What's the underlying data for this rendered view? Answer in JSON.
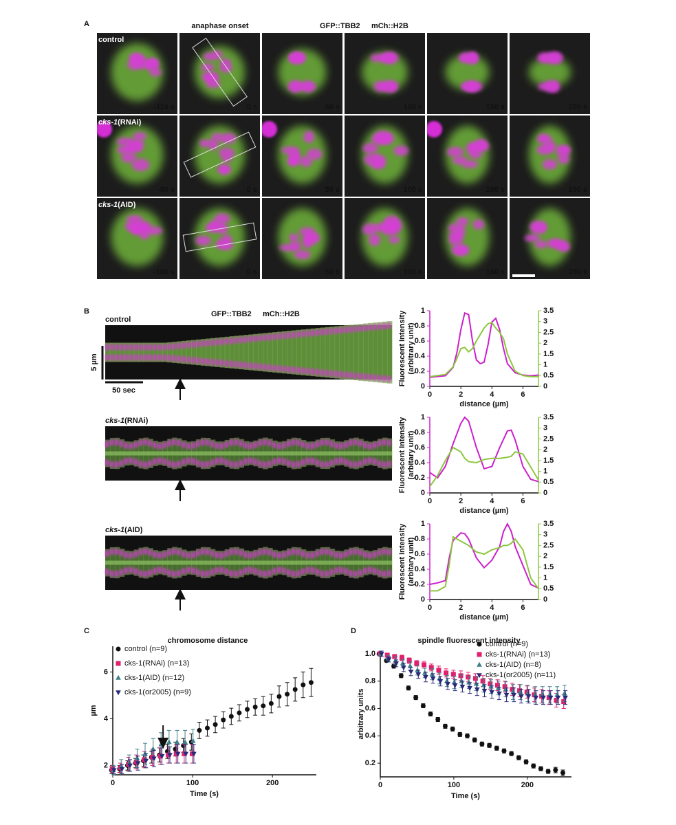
{
  "panel_a": {
    "label": "A",
    "header": "anaphase onset",
    "markers": [
      "GFP::TBB2",
      "mCh::H2B"
    ],
    "rows": [
      {
        "label": "control",
        "times": [
          "-110 s",
          "0 s",
          "50 s",
          "100 s",
          "150 s",
          "200 s"
        ]
      },
      {
        "gene": "cks-1",
        "condition": "(RNAi)",
        "times": [
          "-80 s",
          "0 s",
          "50 s",
          "100 s",
          "150 s",
          "200 s"
        ]
      },
      {
        "gene": "cks-1",
        "condition": "(AID)",
        "times": [
          "-180 s",
          "0 s",
          "50 s",
          "100 s",
          "150 s",
          "200 s"
        ]
      }
    ]
  },
  "panel_b": {
    "label": "B",
    "markers": [
      "GFP::TBB2",
      "mCh::H2B"
    ],
    "scale_y": "5 µm",
    "scale_x": "50 sec",
    "kymographs": [
      {
        "label": "control"
      },
      {
        "gene": "cks-1",
        "condition": "(RNAi)"
      },
      {
        "gene": "cks-1",
        "condition": "(AID)"
      }
    ]
  },
  "chart_data": [
    {
      "type": "line",
      "ylabel": [
        "Fluorescent Intensity",
        "(arbitrary unit)"
      ],
      "xlabel": "distance (µm)",
      "xlim": [
        0,
        7
      ],
      "xticks": [
        0,
        2,
        4,
        6
      ],
      "ylim": [
        0,
        1
      ],
      "yticks": [
        0,
        0.2,
        0.4,
        0.6,
        0.8,
        1
      ],
      "y2lim": [
        0,
        3.5
      ],
      "y2ticks": [
        0,
        0.5,
        1,
        1.5,
        2,
        2.5,
        3,
        3.5
      ],
      "x": [
        0,
        0.5,
        1,
        1.5,
        1.75,
        2,
        2.25,
        2.5,
        2.75,
        3,
        3.25,
        3.5,
        3.75,
        4,
        4.25,
        4.5,
        4.75,
        5,
        5.5,
        6,
        6.5,
        7
      ],
      "series": [
        {
          "color": "#cc1fcc",
          "values": [
            0.12,
            0.13,
            0.14,
            0.25,
            0.45,
            0.75,
            0.97,
            0.95,
            0.6,
            0.35,
            0.3,
            0.32,
            0.55,
            0.85,
            0.9,
            0.75,
            0.5,
            0.3,
            0.18,
            0.15,
            0.14,
            0.15
          ]
        },
        {
          "color": "#8cc63f",
          "axis": "y2",
          "values": [
            0.45,
            0.5,
            0.55,
            0.9,
            1.3,
            1.75,
            1.8,
            1.6,
            1.75,
            2.1,
            2.4,
            2.7,
            2.9,
            2.95,
            2.7,
            2.5,
            2.2,
            1.5,
            0.7,
            0.5,
            0.45,
            0.45
          ]
        }
      ]
    },
    {
      "type": "line",
      "ylabel": [
        "Fluorescent Intensity",
        "(arbitary unit)"
      ],
      "xlabel": "distance (µm)",
      "xlim": [
        0,
        7
      ],
      "xticks": [
        0,
        2,
        4,
        6
      ],
      "ylim": [
        0,
        1
      ],
      "yticks": [
        0,
        0.2,
        0.4,
        0.6,
        0.8,
        1
      ],
      "y2lim": [
        0,
        3.5
      ],
      "y2ticks": [
        0,
        0.5,
        1,
        1.5,
        2,
        2.5,
        3,
        3.5
      ],
      "x": [
        0,
        0.5,
        1,
        1.5,
        2,
        2.25,
        2.5,
        3,
        3.5,
        4,
        4.5,
        5,
        5.25,
        5.5,
        6,
        6.5,
        7
      ],
      "series": [
        {
          "color": "#cc1fcc",
          "values": [
            0.27,
            0.2,
            0.35,
            0.65,
            0.92,
            1.0,
            0.95,
            0.6,
            0.32,
            0.35,
            0.6,
            0.82,
            0.83,
            0.7,
            0.35,
            0.18,
            0.15
          ]
        },
        {
          "color": "#8cc63f",
          "axis": "y2",
          "values": [
            0.3,
            0.8,
            1.5,
            2.1,
            1.9,
            1.6,
            1.45,
            1.4,
            1.55,
            1.6,
            1.6,
            1.65,
            1.7,
            1.9,
            1.8,
            1.2,
            0.6
          ]
        }
      ]
    },
    {
      "type": "line",
      "ylabel": [
        "Fluorescent Intensity",
        "(arbitary unit)"
      ],
      "xlabel": "distance (µm)",
      "xlim": [
        0,
        7
      ],
      "xticks": [
        0,
        2,
        4,
        6
      ],
      "ylim": [
        0,
        1
      ],
      "yticks": [
        0,
        0.2,
        0.4,
        0.6,
        0.8,
        1
      ],
      "y2lim": [
        0,
        3.5
      ],
      "y2ticks": [
        0,
        0.5,
        1,
        1.5,
        2,
        2.5,
        3,
        3.5
      ],
      "x": [
        0,
        0.5,
        1,
        1.25,
        1.5,
        2,
        2.25,
        2.5,
        3,
        3.5,
        4,
        4.5,
        4.75,
        5,
        5.25,
        5.5,
        6,
        6.5,
        7
      ],
      "series": [
        {
          "color": "#cc1fcc",
          "values": [
            0.2,
            0.22,
            0.25,
            0.55,
            0.78,
            0.88,
            0.87,
            0.8,
            0.55,
            0.42,
            0.52,
            0.7,
            0.9,
            1.0,
            0.9,
            0.7,
            0.45,
            0.2,
            0.15
          ]
        },
        {
          "color": "#8cc63f",
          "axis": "y2",
          "values": [
            0.4,
            0.4,
            0.6,
            1.6,
            2.9,
            2.7,
            2.6,
            2.5,
            2.2,
            2.1,
            2.3,
            2.4,
            2.5,
            2.5,
            2.6,
            2.8,
            2.3,
            1.0,
            0.5
          ]
        }
      ]
    },
    {
      "type": "scatter",
      "panel_label": "C",
      "title": "chromosome distance",
      "xlabel": "Time (s)",
      "ylabel": "µm",
      "xlim": [
        0,
        255
      ],
      "xticks": [
        0,
        100,
        200
      ],
      "ylim": [
        1.6,
        7.1
      ],
      "yticks": [
        2,
        4,
        6
      ],
      "series": [
        {
          "name": "control (n=9)",
          "color": "#111111",
          "marker": "circle",
          "x": [
            0,
            10,
            20,
            30,
            40,
            50,
            60,
            70,
            80,
            90,
            100,
            110,
            120,
            130,
            140,
            150,
            160,
            170,
            180,
            190,
            200,
            210,
            220,
            230,
            240,
            250
          ],
          "values": [
            1.8,
            1.85,
            2.0,
            2.1,
            2.2,
            2.35,
            2.45,
            2.6,
            2.7,
            2.85,
            3.0,
            3.5,
            3.6,
            3.75,
            3.95,
            4.1,
            4.25,
            4.4,
            4.5,
            4.55,
            4.65,
            4.95,
            5.05,
            5.25,
            5.45,
            5.55
          ],
          "errors": [
            0.15,
            0.15,
            0.2,
            0.2,
            0.25,
            0.25,
            0.3,
            0.3,
            0.3,
            0.3,
            0.35,
            0.35,
            0.35,
            0.35,
            0.35,
            0.35,
            0.35,
            0.35,
            0.35,
            0.4,
            0.4,
            0.45,
            0.5,
            0.5,
            0.55,
            0.6
          ]
        },
        {
          "name": "cks-1(RNAi) (n=13)",
          "color": "#e0206e",
          "marker": "square",
          "x": [
            0,
            10,
            20,
            30,
            40,
            50,
            60,
            70,
            80,
            90,
            100
          ],
          "values": [
            1.85,
            1.9,
            2.05,
            2.15,
            2.25,
            2.35,
            2.4,
            2.45,
            2.5,
            2.5,
            2.5
          ],
          "errors": [
            0.15,
            0.2,
            0.3,
            0.3,
            0.35,
            0.35,
            0.35,
            0.35,
            0.4,
            0.4,
            0.4
          ]
        },
        {
          "name": "cks-1(AID) (n=12)",
          "color": "#3e7f8a",
          "marker": "triangle-up",
          "x": [
            0,
            10,
            20,
            30,
            40,
            50,
            60,
            70,
            80,
            90,
            100
          ],
          "values": [
            1.8,
            1.95,
            2.1,
            2.3,
            2.5,
            2.7,
            2.9,
            3.0,
            3.0,
            3.0,
            3.05
          ],
          "errors": [
            0.2,
            0.3,
            0.35,
            0.4,
            0.45,
            0.45,
            0.5,
            0.5,
            0.5,
            0.5,
            0.5
          ]
        },
        {
          "name": "cks-1(or2005) (n=9)",
          "color": "#2b2a7a",
          "marker": "triangle-down",
          "x": [
            0,
            10,
            20,
            30,
            40,
            50,
            60,
            70,
            80,
            90,
            100
          ],
          "values": [
            1.8,
            1.85,
            2.0,
            2.1,
            2.2,
            2.3,
            2.4,
            2.45,
            2.5,
            2.5,
            2.5
          ],
          "errors": [
            0.15,
            0.2,
            0.25,
            0.3,
            0.3,
            0.35,
            0.35,
            0.35,
            0.4,
            0.4,
            0.4
          ]
        }
      ]
    },
    {
      "type": "scatter",
      "panel_label": "D",
      "title": "spindle fluorescent intensity",
      "xlabel": "Time (s)",
      "ylabel": "arbitrary units",
      "xlim": [
        0,
        260
      ],
      "xticks": [
        0,
        100,
        200
      ],
      "ylim": [
        0.1,
        1.02
      ],
      "yticks": [
        0.2,
        0.4,
        0.6,
        0.8,
        {
          "value": 1,
          "label": "1.0"
        }
      ],
      "series": [
        {
          "name": "control (n=9)",
          "color": "#111111",
          "marker": "circle",
          "x": [
            0,
            10,
            20,
            30,
            40,
            50,
            60,
            70,
            80,
            90,
            100,
            110,
            120,
            130,
            140,
            150,
            160,
            170,
            180,
            190,
            200,
            210,
            220,
            230,
            240,
            250
          ],
          "values": [
            1.0,
            0.95,
            0.91,
            0.84,
            0.75,
            0.68,
            0.62,
            0.56,
            0.52,
            0.47,
            0.45,
            0.41,
            0.4,
            0.37,
            0.34,
            0.33,
            0.31,
            0.29,
            0.27,
            0.24,
            0.21,
            0.18,
            0.16,
            0.14,
            0.15,
            0.13
          ],
          "errors": [
            0.01,
            0.01,
            0.015,
            0.015,
            0.015,
            0.015,
            0.015,
            0.015,
            0.015,
            0.015,
            0.015,
            0.015,
            0.015,
            0.015,
            0.015,
            0.015,
            0.015,
            0.015,
            0.015,
            0.015,
            0.015,
            0.015,
            0.015,
            0.015,
            0.02,
            0.02
          ]
        },
        {
          "name": "cks-1(RNAi) (n=13)",
          "color": "#e0206e",
          "marker": "square",
          "x": [
            0,
            10,
            20,
            30,
            40,
            50,
            60,
            70,
            80,
            90,
            100,
            110,
            120,
            130,
            140,
            150,
            160,
            170,
            180,
            190,
            200,
            210,
            220,
            230,
            240,
            250
          ],
          "values": [
            1.0,
            0.99,
            0.98,
            0.97,
            0.95,
            0.93,
            0.92,
            0.9,
            0.88,
            0.86,
            0.85,
            0.84,
            0.83,
            0.82,
            0.8,
            0.78,
            0.77,
            0.76,
            0.74,
            0.73,
            0.72,
            0.7,
            0.69,
            0.68,
            0.66,
            0.65
          ],
          "errors": [
            0.01,
            0.01,
            0.015,
            0.02,
            0.02,
            0.02,
            0.025,
            0.025,
            0.03,
            0.03,
            0.03,
            0.035,
            0.035,
            0.035,
            0.04,
            0.04,
            0.04,
            0.04,
            0.045,
            0.045,
            0.045,
            0.05,
            0.05,
            0.05,
            0.05,
            0.05
          ]
        },
        {
          "name": "cks-1(AID) (n=8)",
          "color": "#3e7f8a",
          "marker": "triangle-up",
          "x": [
            0,
            10,
            20,
            30,
            40,
            50,
            60,
            70,
            80,
            90,
            100,
            110,
            120,
            130,
            140,
            150,
            160,
            170,
            180,
            190,
            200,
            210,
            220,
            230,
            240,
            250
          ],
          "values": [
            1.0,
            0.97,
            0.95,
            0.93,
            0.91,
            0.88,
            0.86,
            0.85,
            0.82,
            0.8,
            0.79,
            0.8,
            0.79,
            0.78,
            0.77,
            0.76,
            0.75,
            0.74,
            0.72,
            0.72,
            0.71,
            0.7,
            0.7,
            0.7,
            0.7,
            0.71
          ],
          "errors": [
            0.02,
            0.02,
            0.03,
            0.03,
            0.03,
            0.035,
            0.035,
            0.04,
            0.04,
            0.04,
            0.045,
            0.045,
            0.045,
            0.05,
            0.05,
            0.05,
            0.05,
            0.055,
            0.055,
            0.055,
            0.06,
            0.06,
            0.06,
            0.06,
            0.06,
            0.06
          ]
        },
        {
          "name": "cks-1(or2005) (n=11)",
          "color": "#2b2a7a",
          "marker": "triangle-down",
          "x": [
            0,
            10,
            20,
            30,
            40,
            50,
            60,
            70,
            80,
            90,
            100,
            110,
            120,
            130,
            140,
            150,
            160,
            170,
            180,
            190,
            200,
            210,
            220,
            230,
            240,
            250
          ],
          "values": [
            1.0,
            0.96,
            0.93,
            0.9,
            0.87,
            0.85,
            0.83,
            0.82,
            0.8,
            0.78,
            0.77,
            0.76,
            0.75,
            0.74,
            0.73,
            0.72,
            0.71,
            0.7,
            0.7,
            0.69,
            0.69,
            0.68,
            0.68,
            0.68,
            0.68,
            0.68
          ],
          "errors": [
            0.02,
            0.02,
            0.025,
            0.03,
            0.03,
            0.03,
            0.035,
            0.035,
            0.035,
            0.04,
            0.04,
            0.04,
            0.04,
            0.045,
            0.045,
            0.045,
            0.045,
            0.05,
            0.05,
            0.05,
            0.05,
            0.05,
            0.05,
            0.05,
            0.05,
            0.05
          ]
        }
      ]
    }
  ]
}
